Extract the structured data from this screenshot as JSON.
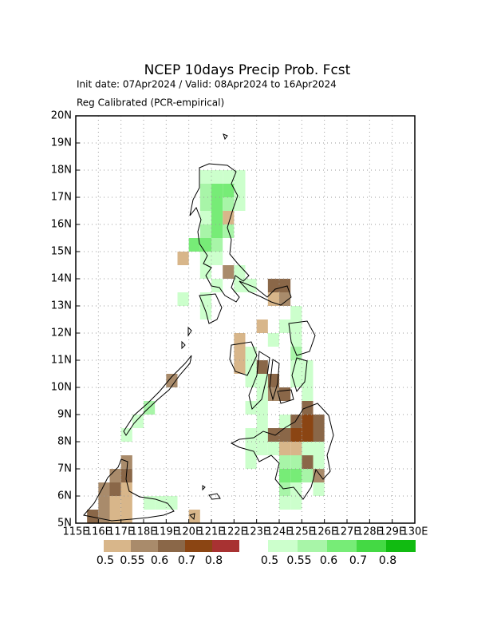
{
  "title": "NCEP 10days Precip Prob. Fcst",
  "subtitle": "Init date: 07Apr2024 / Valid: 08Apr2024 to 16Apr2024",
  "method": "Reg Calibrated (PCR-empirical)",
  "map": {
    "xlim": [
      115,
      130
    ],
    "ylim": [
      5,
      20
    ],
    "grid": true,
    "cell_size": 0.5,
    "xticks": [
      {
        "value": 115,
        "label": "115E"
      },
      {
        "value": 116,
        "label": "116E"
      },
      {
        "value": 117,
        "label": "117E"
      },
      {
        "value": 118,
        "label": "118E"
      },
      {
        "value": 119,
        "label": "119E"
      },
      {
        "value": 120,
        "label": "120E"
      },
      {
        "value": 121,
        "label": "121E"
      },
      {
        "value": 122,
        "label": "122E"
      },
      {
        "value": 123,
        "label": "123E"
      },
      {
        "value": 124,
        "label": "124E"
      },
      {
        "value": 125,
        "label": "125E"
      },
      {
        "value": 126,
        "label": "126E"
      },
      {
        "value": 127,
        "label": "127E"
      },
      {
        "value": 128,
        "label": "128E"
      },
      {
        "value": 129,
        "label": "129E"
      },
      {
        "value": 130,
        "label": "130E"
      }
    ],
    "yticks": [
      {
        "value": 5,
        "label": "5N"
      },
      {
        "value": 6,
        "label": "6N"
      },
      {
        "value": 7,
        "label": "7N"
      },
      {
        "value": 8,
        "label": "8N"
      },
      {
        "value": 9,
        "label": "9N"
      },
      {
        "value": 10,
        "label": "10N"
      },
      {
        "value": 11,
        "label": "11N"
      },
      {
        "value": 12,
        "label": "12N"
      },
      {
        "value": 13,
        "label": "13N"
      },
      {
        "value": 14,
        "label": "14N"
      },
      {
        "value": 15,
        "label": "15N"
      },
      {
        "value": 16,
        "label": "16N"
      },
      {
        "value": 17,
        "label": "17N"
      },
      {
        "value": 18,
        "label": "18N"
      },
      {
        "value": 19,
        "label": "19N"
      },
      {
        "value": 20,
        "label": "20N"
      }
    ],
    "dry_cells": [
      [
        121.5,
        16,
        0.5
      ],
      [
        119.5,
        14.5,
        0.5
      ],
      [
        121.5,
        14,
        0.55
      ],
      [
        123.5,
        13.5,
        0.6
      ],
      [
        124,
        13.5,
        0.6
      ],
      [
        124,
        13,
        0.55
      ],
      [
        123.5,
        13,
        0.5
      ],
      [
        123,
        12,
        0.5
      ],
      [
        124,
        12,
        0.5
      ],
      [
        122,
        11.5,
        0.5
      ],
      [
        122,
        11,
        0.5
      ],
      [
        122,
        10.5,
        0.5
      ],
      [
        122.5,
        11,
        0.5
      ],
      [
        123,
        10.5,
        0.6
      ],
      [
        123.5,
        10,
        0.6
      ],
      [
        123.5,
        9.5,
        0.55
      ],
      [
        124,
        9.5,
        0.6
      ],
      [
        125,
        9,
        0.6
      ],
      [
        124.5,
        8.5,
        0.6
      ],
      [
        125,
        8.5,
        0.7
      ],
      [
        125.5,
        8.5,
        0.6
      ],
      [
        123,
        8,
        0.6
      ],
      [
        123.5,
        8,
        0.6
      ],
      [
        124,
        8,
        0.6
      ],
      [
        124.5,
        8,
        0.7
      ],
      [
        125,
        8,
        0.7
      ],
      [
        125.5,
        8,
        0.6
      ],
      [
        124,
        7.5,
        0.5
      ],
      [
        124.5,
        7.5,
        0.5
      ],
      [
        125,
        7.5,
        0.6
      ],
      [
        125,
        7,
        0.6
      ],
      [
        125.5,
        6.5,
        0.55
      ],
      [
        117,
        7,
        0.55
      ],
      [
        116.5,
        6.5,
        0.55
      ],
      [
        117,
        6.5,
        0.6
      ],
      [
        116,
        6,
        0.55
      ],
      [
        116.5,
        6,
        0.6
      ],
      [
        117,
        6,
        0.5
      ],
      [
        116,
        5.5,
        0.55
      ],
      [
        116.5,
        5.5,
        0.5
      ],
      [
        117,
        5.5,
        0.5
      ],
      [
        115.5,
        5,
        0.6
      ],
      [
        116,
        5,
        0.55
      ],
      [
        116.5,
        5,
        0.5
      ],
      [
        117,
        5,
        0.5
      ],
      [
        119,
        10,
        0.55
      ],
      [
        120,
        5,
        0.5
      ]
    ],
    "wet_cells": [
      [
        120.5,
        17.5,
        0.5
      ],
      [
        121,
        17.5,
        0.5
      ],
      [
        121.5,
        17.5,
        0.5
      ],
      [
        122,
        17.5,
        0.5
      ],
      [
        120.5,
        17,
        0.55
      ],
      [
        121,
        17,
        0.6
      ],
      [
        121.5,
        17,
        0.6
      ],
      [
        122,
        17,
        0.5
      ],
      [
        120.5,
        16.5,
        0.55
      ],
      [
        121,
        16.5,
        0.6
      ],
      [
        121.5,
        16.5,
        0.55
      ],
      [
        122,
        16.5,
        0.5
      ],
      [
        120.5,
        16,
        0.5
      ],
      [
        121,
        16,
        0.6
      ],
      [
        120.5,
        15.5,
        0.55
      ],
      [
        121,
        15.5,
        0.6
      ],
      [
        121.5,
        15.5,
        0.55
      ],
      [
        120,
        15,
        0.6
      ],
      [
        120.5,
        15,
        0.6
      ],
      [
        121,
        15,
        0.55
      ],
      [
        120.5,
        14.5,
        0.5
      ],
      [
        121,
        14.5,
        0.5
      ],
      [
        120.5,
        14,
        0.5
      ],
      [
        122,
        14,
        0.5
      ],
      [
        121,
        13.5,
        0.5
      ],
      [
        122,
        13.5,
        0.5
      ],
      [
        122.5,
        13.5,
        0.5
      ],
      [
        119.5,
        13,
        0.5
      ],
      [
        120.5,
        13,
        0.5
      ],
      [
        120.5,
        12.5,
        0.5
      ],
      [
        124.5,
        12.5,
        0.5
      ],
      [
        124,
        12,
        0.5
      ],
      [
        124.5,
        12,
        0.5
      ],
      [
        124.5,
        11.5,
        0.5
      ],
      [
        123.5,
        11.5,
        0.5
      ],
      [
        124.5,
        11,
        0.55
      ],
      [
        122.5,
        11,
        0.5
      ],
      [
        124.5,
        10.5,
        0.5
      ],
      [
        125,
        10.5,
        0.5
      ],
      [
        122.5,
        10.5,
        0.5
      ],
      [
        122.5,
        10,
        0.5
      ],
      [
        123,
        10,
        0.5
      ],
      [
        124.5,
        10,
        0.5
      ],
      [
        125,
        10,
        0.5
      ],
      [
        123,
        9.5,
        0.5
      ],
      [
        125,
        9.5,
        0.5
      ],
      [
        118,
        9,
        0.55
      ],
      [
        122.5,
        9,
        0.5
      ],
      [
        123,
        9,
        0.5
      ],
      [
        117.5,
        8.5,
        0.5
      ],
      [
        123,
        8.5,
        0.5
      ],
      [
        124,
        8.5,
        0.5
      ],
      [
        117,
        8,
        0.5
      ],
      [
        122.5,
        8,
        0.5
      ],
      [
        123,
        8,
        0.5
      ],
      [
        122.5,
        7.5,
        0.5
      ],
      [
        123,
        7.5,
        0.5
      ],
      [
        123.5,
        7.5,
        0.5
      ],
      [
        125,
        7.5,
        0.5
      ],
      [
        125.5,
        7.5,
        0.5
      ],
      [
        122.5,
        7,
        0.5
      ],
      [
        124,
        7,
        0.55
      ],
      [
        124.5,
        7,
        0.55
      ],
      [
        125.5,
        7,
        0.5
      ],
      [
        124,
        6.5,
        0.6
      ],
      [
        124.5,
        6.5,
        0.6
      ],
      [
        125,
        6.5,
        0.55
      ],
      [
        124,
        6,
        0.55
      ],
      [
        124.5,
        6,
        0.5
      ],
      [
        125.5,
        6,
        0.5
      ],
      [
        124,
        5.5,
        0.5
      ],
      [
        124.5,
        5.5,
        0.5
      ],
      [
        118,
        5.5,
        0.5
      ],
      [
        118.5,
        5.5,
        0.5
      ],
      [
        119,
        5.5,
        0.5
      ]
    ]
  },
  "legends": [
    {
      "levels": [
        0.5,
        0.55,
        0.6,
        0.7,
        0.8
      ],
      "colors": [
        "#d8b68a",
        "#a98b6b",
        "#8a6748",
        "#8b4513",
        "#a83232"
      ]
    },
    {
      "levels": [
        0.5,
        0.55,
        0.6,
        0.7,
        0.8
      ],
      "colors": [
        "#ccffcc",
        "#a8f5a8",
        "#77ec77",
        "#44d944",
        "#11bb11"
      ]
    }
  ]
}
